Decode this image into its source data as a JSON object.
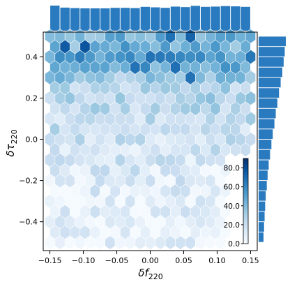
{
  "chart_data": {
    "type": "hexbin",
    "xlabel_base": "δf",
    "xlabel_sub": "220",
    "ylabel_base": "δτ",
    "ylabel_sub": "220",
    "xlim": [
      -0.16,
      0.16
    ],
    "ylim": [
      -0.54,
      0.52
    ],
    "xticks": [
      -0.15,
      -0.1,
      -0.05,
      0.0,
      0.05,
      0.1,
      0.15
    ],
    "xtick_labels": [
      "−0.15",
      "−0.10",
      "−0.05",
      "0.00",
      "0.05",
      "0.10",
      "0.15"
    ],
    "yticks": [
      -0.4,
      -0.2,
      0.0,
      0.2,
      0.4
    ],
    "ytick_labels": [
      "−0.4",
      "−0.2",
      "0.0",
      "0.2",
      "0.4"
    ],
    "colorbar": {
      "range": [
        0,
        90
      ],
      "ticks": [
        0,
        20,
        40,
        60,
        80
      ],
      "tick_labels": [
        "0.0",
        "20.0",
        "40.0",
        "60.0",
        "80.0"
      ],
      "cmap": "Blues"
    },
    "hexbin": {
      "gridsize": 20,
      "x_centers_range": [
        -0.15,
        0.15
      ],
      "y_centers_range": [
        -0.5,
        0.5
      ],
      "count_model": "density increases with δτ220; top band y 0.30–0.45 holds ~40–70 per bin; lower half ~5–25 per bin"
    },
    "x_marginal": {
      "bins": 20,
      "range": [
        -0.15,
        0.15
      ],
      "counts": [
        100,
        92,
        90,
        89,
        89,
        89,
        91,
        91,
        90,
        95,
        93,
        91,
        96,
        94,
        99,
        95,
        96,
        98,
        97,
        95
      ]
    },
    "y_marginal": {
      "bins": 20,
      "range": [
        -0.5,
        0.5
      ],
      "counts": [
        18,
        20,
        22,
        24,
        26,
        30,
        33,
        37,
        42,
        47,
        52,
        58,
        63,
        69,
        75,
        81,
        87,
        92,
        96,
        100
      ]
    },
    "colors": {
      "bar": "#2a7abf",
      "axes": "#000000"
    }
  }
}
